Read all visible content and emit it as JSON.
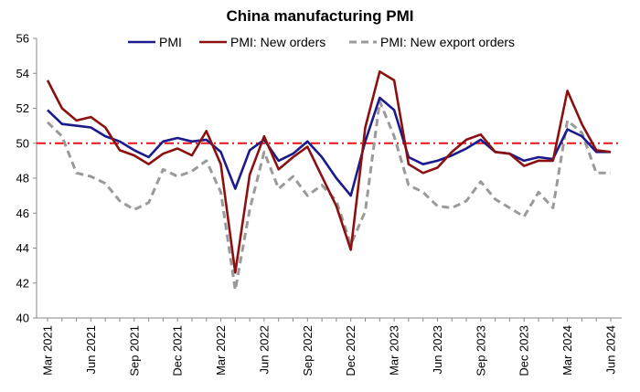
{
  "chart_data": {
    "type": "line",
    "title": "China manufacturing PMI",
    "xlabel": "",
    "ylabel": "",
    "ylim": [
      40,
      56
    ],
    "yticks": [
      40,
      42,
      44,
      46,
      48,
      50,
      52,
      54,
      56
    ],
    "reference_line": {
      "value": 50,
      "color": "#e8141a",
      "style": "dash-dot"
    },
    "grid": false,
    "legend_position": "top",
    "x": [
      "Mar 2021",
      "Apr 2021",
      "May 2021",
      "Jun 2021",
      "Jul 2021",
      "Aug 2021",
      "Sep 2021",
      "Oct 2021",
      "Nov 2021",
      "Dec 2021",
      "Jan 2022",
      "Feb 2022",
      "Mar 2022",
      "Apr 2022",
      "May 2022",
      "Jun 2022",
      "Jul 2022",
      "Aug 2022",
      "Sep 2022",
      "Oct 2022",
      "Nov 2022",
      "Dec 2022",
      "Jan 2023",
      "Feb 2023",
      "Mar 2023",
      "Apr 2023",
      "May 2023",
      "Jun 2023",
      "Jul 2023",
      "Aug 2023",
      "Sep 2023",
      "Oct 2023",
      "Nov 2023",
      "Dec 2023",
      "Jan 2024",
      "Feb 2024",
      "Mar 2024",
      "Apr 2024",
      "May 2024",
      "Jun 2024"
    ],
    "x_tick_labels": [
      "Mar 2021",
      "Jun 2021",
      "Sep 2021",
      "Dec 2021",
      "Mar 2022",
      "Jun 2022",
      "Sep 2022",
      "Dec 2022",
      "Mar 2023",
      "Jun 2023",
      "Sep 2023",
      "Dec 2023",
      "Mar 2024",
      "Jun 2024"
    ],
    "series": [
      {
        "name": "PMI",
        "color": "#1a1a8c",
        "dash": "solid",
        "values": [
          51.9,
          51.1,
          51.0,
          50.9,
          50.4,
          50.1,
          49.6,
          49.2,
          50.1,
          50.3,
          50.1,
          50.2,
          49.5,
          47.4,
          49.6,
          50.2,
          49.0,
          49.4,
          50.1,
          49.2,
          48.0,
          47.0,
          50.1,
          52.6,
          51.9,
          49.2,
          48.8,
          49.0,
          49.3,
          49.7,
          50.2,
          49.5,
          49.4,
          49.0,
          49.2,
          49.1,
          50.8,
          50.4,
          49.5,
          49.5
        ]
      },
      {
        "name": "PMI: New orders",
        "color": "#8b1010",
        "dash": "solid",
        "values": [
          53.6,
          52.0,
          51.3,
          51.5,
          50.9,
          49.6,
          49.3,
          48.8,
          49.4,
          49.7,
          49.3,
          50.7,
          48.8,
          42.6,
          48.2,
          50.4,
          48.5,
          49.2,
          49.8,
          48.1,
          46.4,
          43.9,
          50.9,
          54.1,
          53.6,
          48.8,
          48.3,
          48.6,
          49.5,
          50.2,
          50.5,
          49.5,
          49.4,
          48.7,
          49.0,
          49.0,
          53.0,
          51.1,
          49.6,
          49.5
        ]
      },
      {
        "name": "PMI: New export orders",
        "color": "#9a9a9a",
        "dash": "dashed",
        "values": [
          51.2,
          50.4,
          48.3,
          48.1,
          47.7,
          46.7,
          46.2,
          46.6,
          48.5,
          48.1,
          48.4,
          49.0,
          47.2,
          41.6,
          46.2,
          49.5,
          47.4,
          48.1,
          47.0,
          47.6,
          46.7,
          44.2,
          46.1,
          52.4,
          50.4,
          47.6,
          47.2,
          46.4,
          46.3,
          46.7,
          47.8,
          46.8,
          46.3,
          45.8,
          47.2,
          46.3,
          51.3,
          50.6,
          48.3,
          48.3
        ]
      }
    ]
  }
}
